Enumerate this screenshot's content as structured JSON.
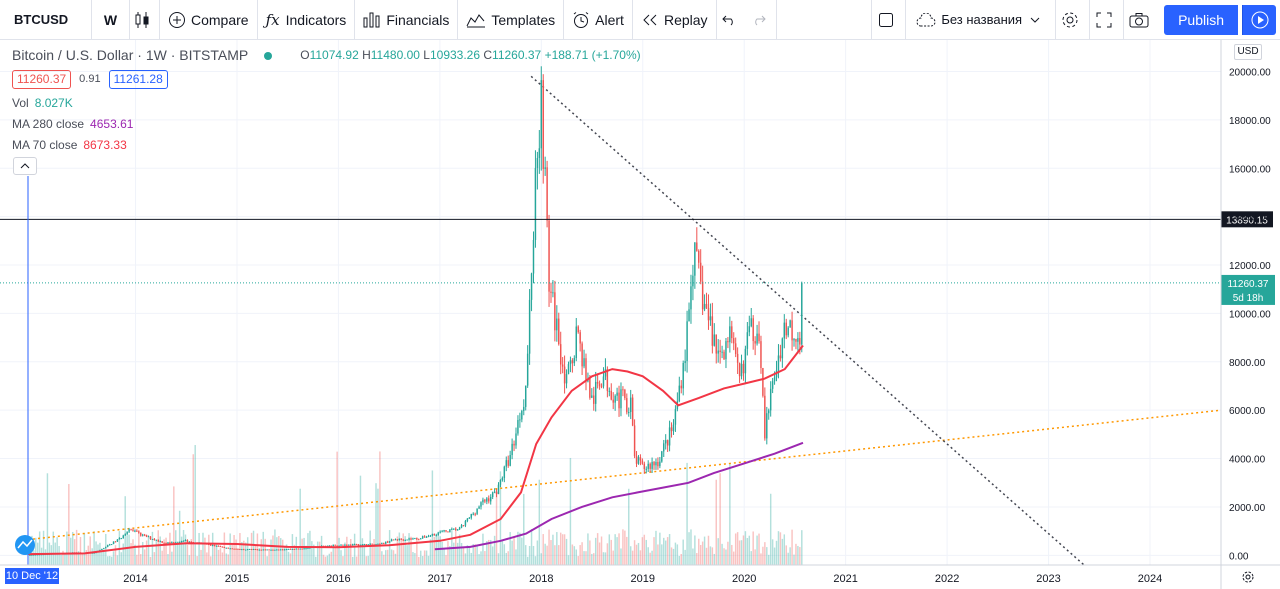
{
  "toolbar": {
    "symbol": "BTCUSD",
    "interval": "W",
    "compare": "Compare",
    "indicators": "Indicators",
    "financials": "Financials",
    "templates": "Templates",
    "alert": "Alert",
    "replay": "Replay",
    "layout_name": "Без названия",
    "publish": "Publish"
  },
  "legend": {
    "title": "Bitcoin / U.S. Dollar · 1W · BITSTAMP",
    "open_key": "O",
    "open": "11074.92",
    "high_key": "H",
    "high": "11480.00",
    "low_key": "L",
    "low": "10933.26",
    "close_key": "C",
    "close": "11260.37",
    "change": "+188.71 (+1.70%)",
    "bid": "11260.37",
    "spread": "0.91",
    "ask": "11261.28",
    "vol_label": "Vol",
    "vol_value": "8.027K",
    "ma280_label": "MA 280 close",
    "ma280_value": "4653.61",
    "ma70_label": "MA 70 close",
    "ma70_value": "8673.33"
  },
  "currency": "USD",
  "crosshair_date": "10 Dec '12",
  "colors": {
    "up": "#26a69a",
    "down": "#ef5350",
    "ma70": "#f23645",
    "ma280": "#9c27b0",
    "trendline_orange": "#ff9800",
    "trendline_gray": "#434651",
    "accent": "#2962ff"
  },
  "chart_data": {
    "type": "candlestick",
    "title": "Bitcoin / U.S. Dollar · 1W · BITSTAMP",
    "ylim": [
      -400,
      20600
    ],
    "yticks": [
      0,
      2000,
      4000,
      6000,
      8000,
      10000,
      12000,
      14000,
      16000,
      18000,
      20000
    ],
    "ytick_labels": [
      "0.00",
      "2000.00",
      "4000.00",
      "6000.00",
      "8000.00",
      "10000.00",
      "12000.00",
      "14000.00",
      "16000.00",
      "18000.00",
      "20000.00"
    ],
    "xlim": [
      2012.94,
      2024.7
    ],
    "xticks": [
      2014,
      2015,
      2016,
      2017,
      2018,
      2019,
      2020,
      2021,
      2022,
      2023,
      2024
    ],
    "xtick_labels": [
      "2014",
      "2015",
      "2016",
      "2017",
      "2018",
      "2019",
      "2020",
      "2021",
      "2022",
      "2023",
      "2024"
    ],
    "price_path": [
      [
        2012.94,
        13
      ],
      [
        2013.25,
        90
      ],
      [
        2013.4,
        120
      ],
      [
        2013.6,
        100
      ],
      [
        2013.85,
        700
      ],
      [
        2013.93,
        1100
      ],
      [
        2014.05,
        850
      ],
      [
        2014.3,
        500
      ],
      [
        2014.5,
        600
      ],
      [
        2014.8,
        380
      ],
      [
        2015.0,
        250
      ],
      [
        2015.3,
        240
      ],
      [
        2015.6,
        270
      ],
      [
        2015.85,
        380
      ],
      [
        2016.0,
        430
      ],
      [
        2016.4,
        450
      ],
      [
        2016.55,
        650
      ],
      [
        2016.8,
        700
      ],
      [
        2017.0,
        950
      ],
      [
        2017.2,
        1100
      ],
      [
        2017.4,
        2100
      ],
      [
        2017.55,
        2600
      ],
      [
        2017.7,
        4200
      ],
      [
        2017.85,
        7000
      ],
      [
        2017.96,
        17000
      ],
      [
        2018.0,
        19000
      ],
      [
        2018.08,
        11000
      ],
      [
        2018.15,
        9500
      ],
      [
        2018.25,
        7000
      ],
      [
        2018.35,
        9300
      ],
      [
        2018.5,
        6300
      ],
      [
        2018.6,
        7500
      ],
      [
        2018.75,
        6500
      ],
      [
        2018.88,
        6300
      ],
      [
        2018.92,
        4000
      ],
      [
        2019.0,
        3600
      ],
      [
        2019.15,
        3900
      ],
      [
        2019.3,
        5300
      ],
      [
        2019.42,
        8500
      ],
      [
        2019.5,
        12500
      ],
      [
        2019.6,
        10500
      ],
      [
        2019.75,
        8200
      ],
      [
        2019.85,
        9200
      ],
      [
        2019.95,
        7200
      ],
      [
        2020.05,
        9200
      ],
      [
        2020.15,
        9500
      ],
      [
        2020.2,
        5000
      ],
      [
        2020.3,
        7500
      ],
      [
        2020.4,
        9500
      ],
      [
        2020.5,
        9300
      ],
      [
        2020.55,
        9200
      ],
      [
        2020.58,
        11260
      ]
    ],
    "ma70": [
      [
        2012.94,
        50
      ],
      [
        2013.5,
        80
      ],
      [
        2014.0,
        350
      ],
      [
        2014.5,
        500
      ],
      [
        2015.0,
        470
      ],
      [
        2015.5,
        350
      ],
      [
        2016.0,
        330
      ],
      [
        2016.5,
        420
      ],
      [
        2017.0,
        600
      ],
      [
        2017.3,
        850
      ],
      [
        2017.6,
        1500
      ],
      [
        2017.8,
        2600
      ],
      [
        2017.95,
        4600
      ],
      [
        2018.1,
        5700
      ],
      [
        2018.3,
        6800
      ],
      [
        2018.5,
        7400
      ],
      [
        2018.7,
        7700
      ],
      [
        2018.85,
        7600
      ],
      [
        2019.0,
        7400
      ],
      [
        2019.2,
        6800
      ],
      [
        2019.35,
        6200
      ],
      [
        2019.55,
        6500
      ],
      [
        2019.8,
        6900
      ],
      [
        2020.0,
        7100
      ],
      [
        2020.2,
        7300
      ],
      [
        2020.4,
        7700
      ],
      [
        2020.58,
        8673
      ]
    ],
    "ma280": [
      [
        2016.95,
        250
      ],
      [
        2017.3,
        350
      ],
      [
        2017.6,
        600
      ],
      [
        2017.85,
        900
      ],
      [
        2018.1,
        1500
      ],
      [
        2018.4,
        2000
      ],
      [
        2018.7,
        2400
      ],
      [
        2018.95,
        2600
      ],
      [
        2019.2,
        2800
      ],
      [
        2019.45,
        3000
      ],
      [
        2019.7,
        3400
      ],
      [
        2020.0,
        3800
      ],
      [
        2020.3,
        4200
      ],
      [
        2020.58,
        4653
      ]
    ],
    "volume_max": 1.0,
    "levels": {
      "resistance": {
        "value": 13890.15,
        "label": "13890.15"
      },
      "last_price": {
        "value": 11260.37,
        "label": "11260.37",
        "countdown": "5d 18h"
      }
    },
    "trendlines": [
      {
        "style": "dotted",
        "color": "#ff9800",
        "from": [
          2012.94,
          650
        ],
        "to": [
          2024.7,
          6000
        ]
      },
      {
        "style": "dotted",
        "color": "#434651",
        "from": [
          2017.9,
          19800
        ],
        "to": [
          2023.35,
          -400
        ]
      }
    ]
  }
}
